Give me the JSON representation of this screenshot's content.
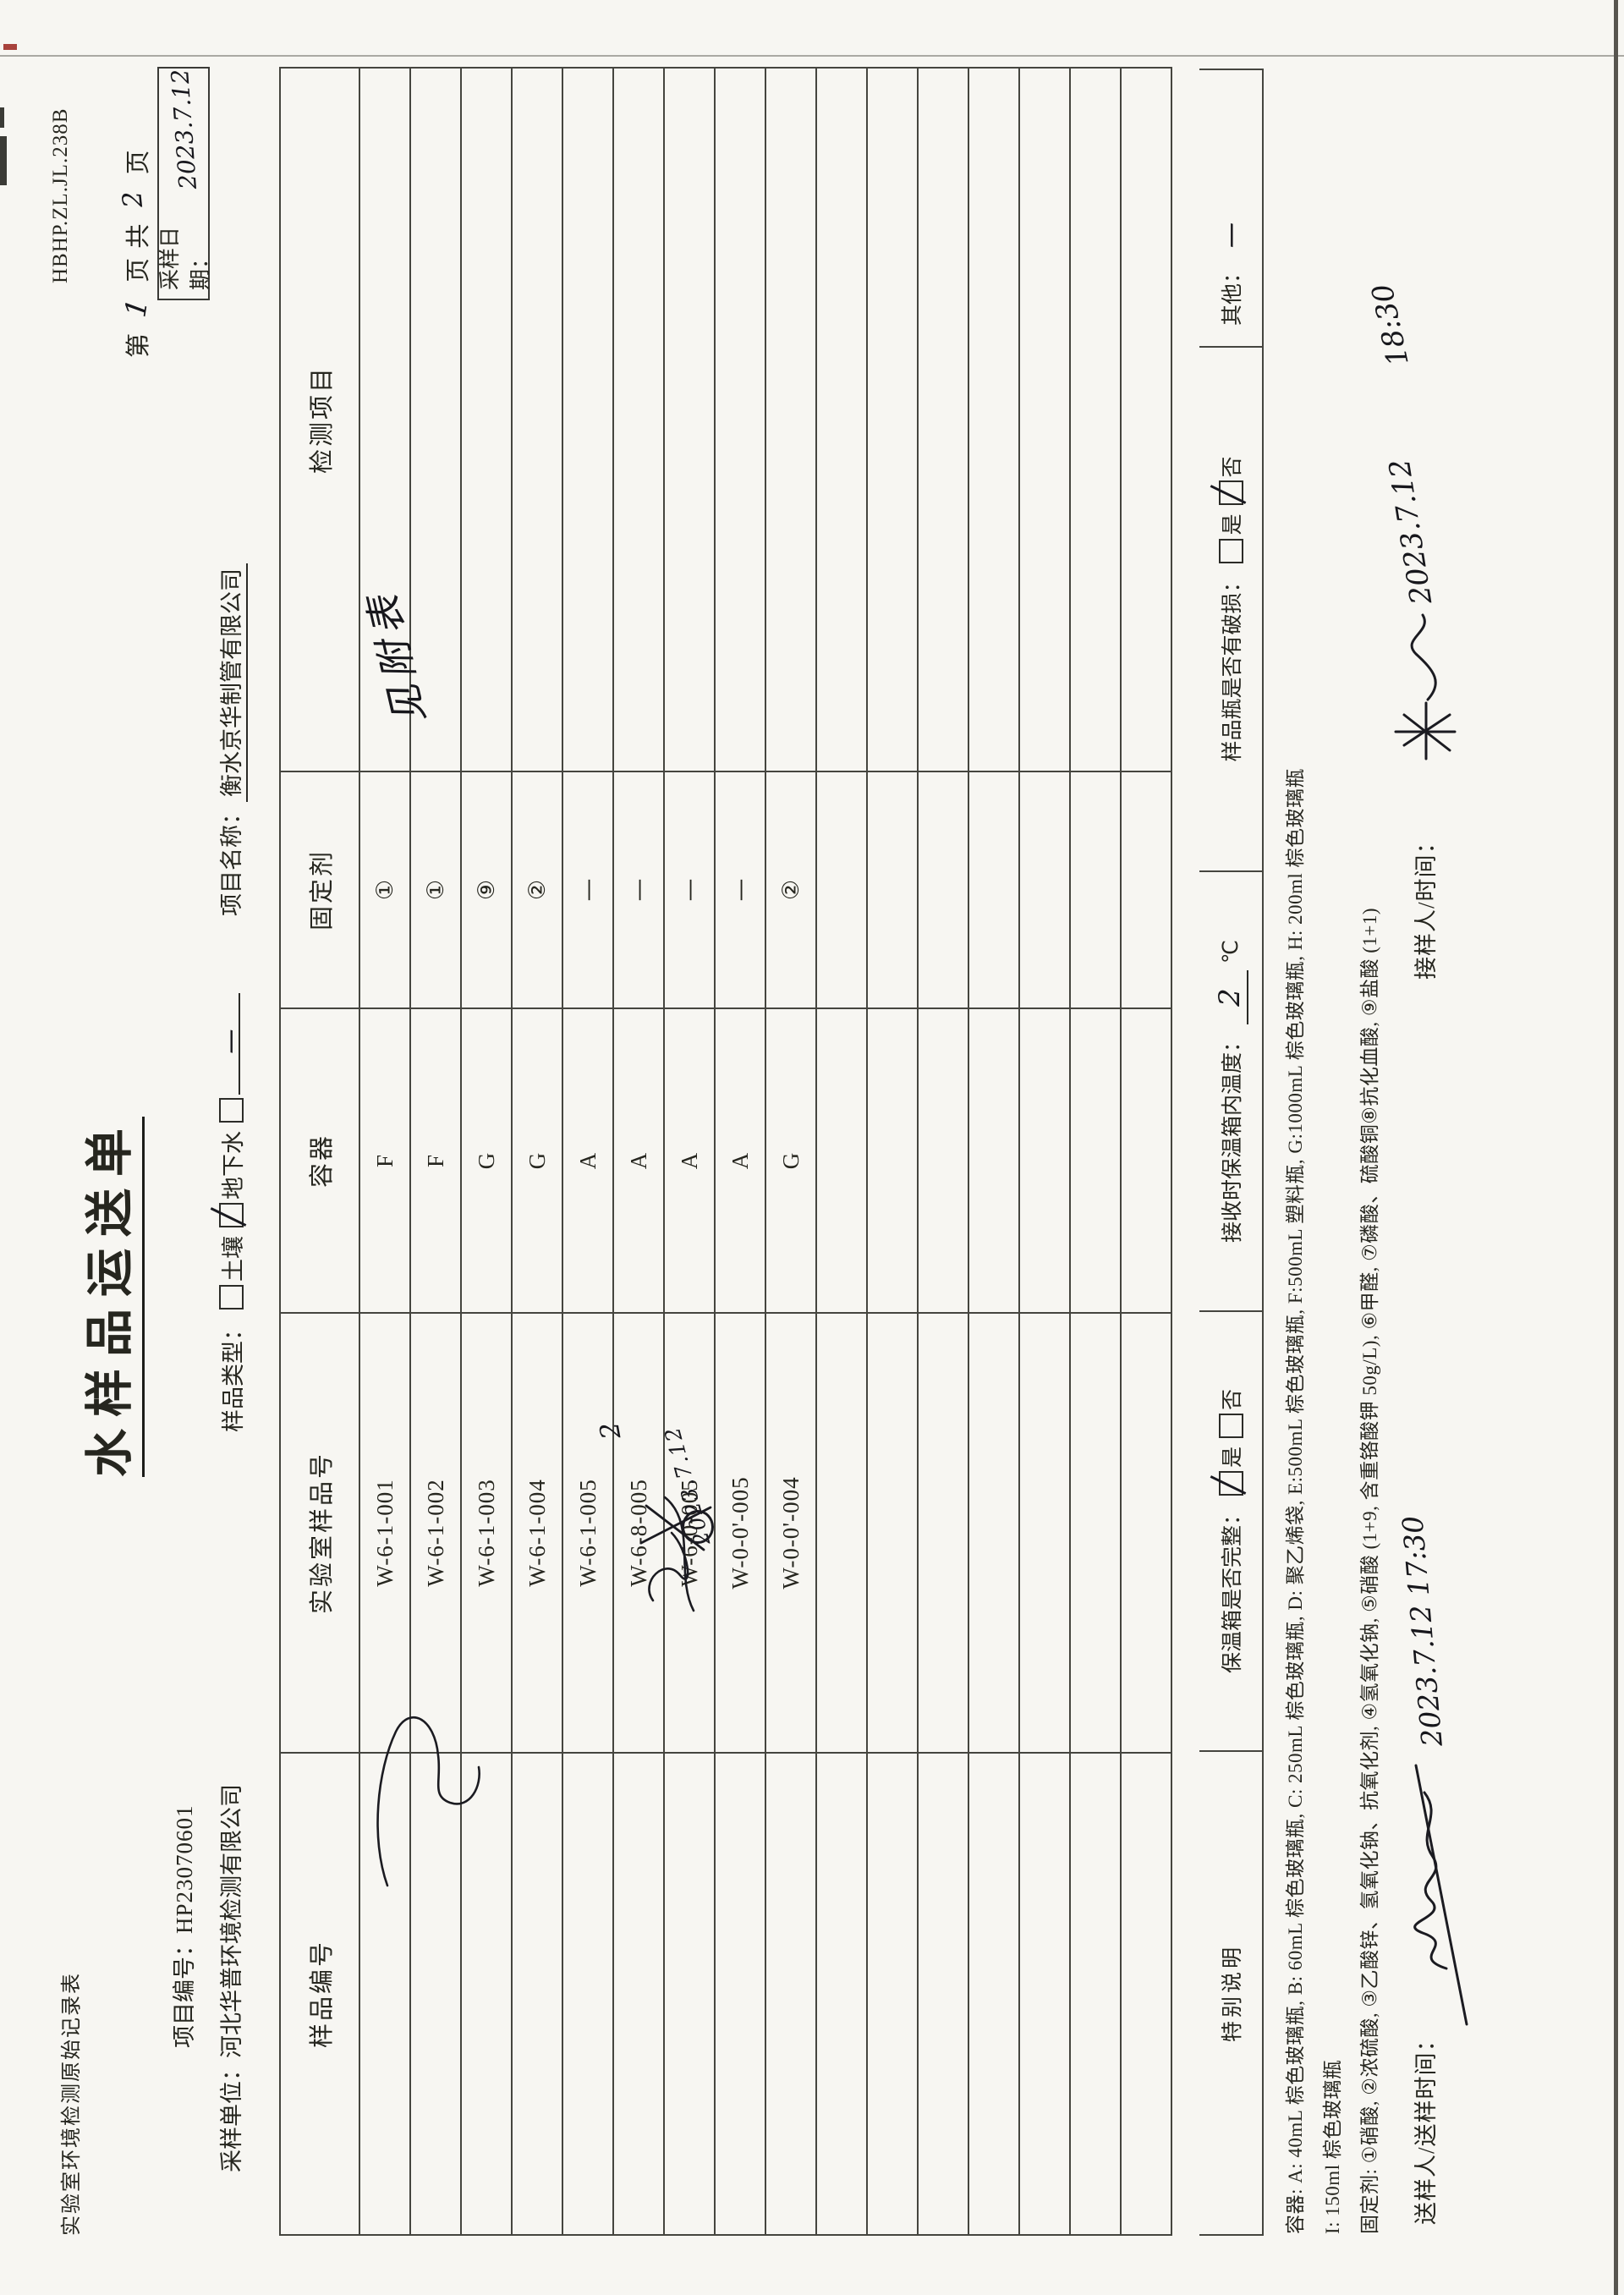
{
  "page": {
    "doc_label": "实验室环境检测原始记录表",
    "form_code": "HBHP.ZL.JL.238B",
    "title": "水样品运送单",
    "page_no": {
      "p1": "第",
      "num": "1",
      "p2": "页  共",
      "total": "2",
      "p3": "页"
    },
    "sampling_date": {
      "label": "采样日期：",
      "value": "2023.7.12"
    },
    "project_no": {
      "label": "项目编号：",
      "value": "HP23070601"
    },
    "sampling_unit": {
      "label": "采样单位：",
      "value": "河北华普环境检测有限公司"
    },
    "sample_type": {
      "label": "样品类型：",
      "opt1": "土壤",
      "opt1_checked": false,
      "opt2": "地下水",
      "opt2_checked": true,
      "other_value": "一"
    },
    "project_name": {
      "label": "项目名称：",
      "value": "衡水京华制管有限公司"
    }
  },
  "table": {
    "headers": [
      "样品编号",
      "实验室样品号",
      "容器",
      "固定剂",
      "检测项目"
    ],
    "rows": [
      {
        "sample_no": "",
        "lab_no": "W-6-1-001",
        "container": "F",
        "fixative": "①",
        "items": ""
      },
      {
        "sample_no": "",
        "lab_no": "W-6-1-002",
        "container": "F",
        "fixative": "①",
        "items": ""
      },
      {
        "sample_no": "",
        "lab_no": "W-6-1-003",
        "container": "G",
        "fixative": "⑨",
        "items": ""
      },
      {
        "sample_no": "",
        "lab_no": "W-6-1-004",
        "container": "G",
        "fixative": "②",
        "items": ""
      },
      {
        "sample_no": "",
        "lab_no": "W-6-1-005",
        "container": "A",
        "fixative": "—",
        "items": ""
      },
      {
        "sample_no": "",
        "lab_no": "W-6-8-005",
        "container": "A",
        "fixative": "—",
        "items": ""
      },
      {
        "sample_no": "",
        "lab_no": "W-6-0-005",
        "container": "A",
        "fixative": "—",
        "items": ""
      },
      {
        "sample_no": "",
        "lab_no": "W-0-0'-005",
        "container": "A",
        "fixative": "—",
        "items": ""
      },
      {
        "sample_no": "",
        "lab_no": "W-0-0'-004",
        "container": "G",
        "fixative": "②",
        "items": ""
      },
      {
        "sample_no": "",
        "lab_no": "",
        "container": "",
        "fixative": "",
        "items": ""
      },
      {
        "sample_no": "",
        "lab_no": "",
        "container": "",
        "fixative": "",
        "items": ""
      },
      {
        "sample_no": "",
        "lab_no": "",
        "container": "",
        "fixative": "",
        "items": ""
      },
      {
        "sample_no": "",
        "lab_no": "",
        "container": "",
        "fixative": "",
        "items": ""
      },
      {
        "sample_no": "",
        "lab_no": "",
        "container": "",
        "fixative": "",
        "items": ""
      },
      {
        "sample_no": "",
        "lab_no": "",
        "container": "",
        "fixative": "",
        "items": ""
      },
      {
        "sample_no": "",
        "lab_no": "",
        "container": "",
        "fixative": "",
        "items": ""
      }
    ],
    "handwriting": {
      "items_note": "见附表",
      "row6_mark": "2",
      "row6_date": "2023.7.12"
    }
  },
  "special_row": {
    "label": "特别说明",
    "cooler": {
      "text": "保温箱是否完整：",
      "yes": "是",
      "yes_checked": true,
      "no": "否",
      "no_checked": false
    },
    "temperature": {
      "text": "接收时保温箱内温度：",
      "value": "2",
      "unit": "℃"
    },
    "damage": {
      "text": "样品瓶是否有破损：",
      "yes": "是",
      "yes_checked": false,
      "no": "否",
      "no_checked": true
    },
    "other": {
      "label": "其他：",
      "value": "一"
    }
  },
  "notes": {
    "container_line1": "容器: A: 40mL 棕色玻璃瓶, B: 60mL 棕色玻璃瓶, C: 250mL 棕色玻璃瓶, D: 聚乙烯袋, E:500mL 棕色玻璃瓶, F:500mL 塑料瓶, G:1000mL 棕色玻璃瓶, H: 200ml 棕色玻璃瓶",
    "container_line2": "I: 150ml 棕色玻璃瓶",
    "fixative_line": "固定剂: ①硝酸, ②浓硫酸, ③乙酸锌、氢氧化钠、抗氧化剂, ④氢氧化钠, ⑤硝酸 (1+9, 含重铬酸钾 50g/L), ⑥甲醛, ⑦磷酸、硫酸铜⑧抗化血酸, ⑨盐酸 (1+1)"
  },
  "signatures": {
    "sender_label": "送样人/送样时间：",
    "sender_datetime": "2023.7.12 17:30",
    "receiver_label": "接样人/时间：",
    "receiver_date": "2023.7.12",
    "receiver_time": "18:30"
  }
}
